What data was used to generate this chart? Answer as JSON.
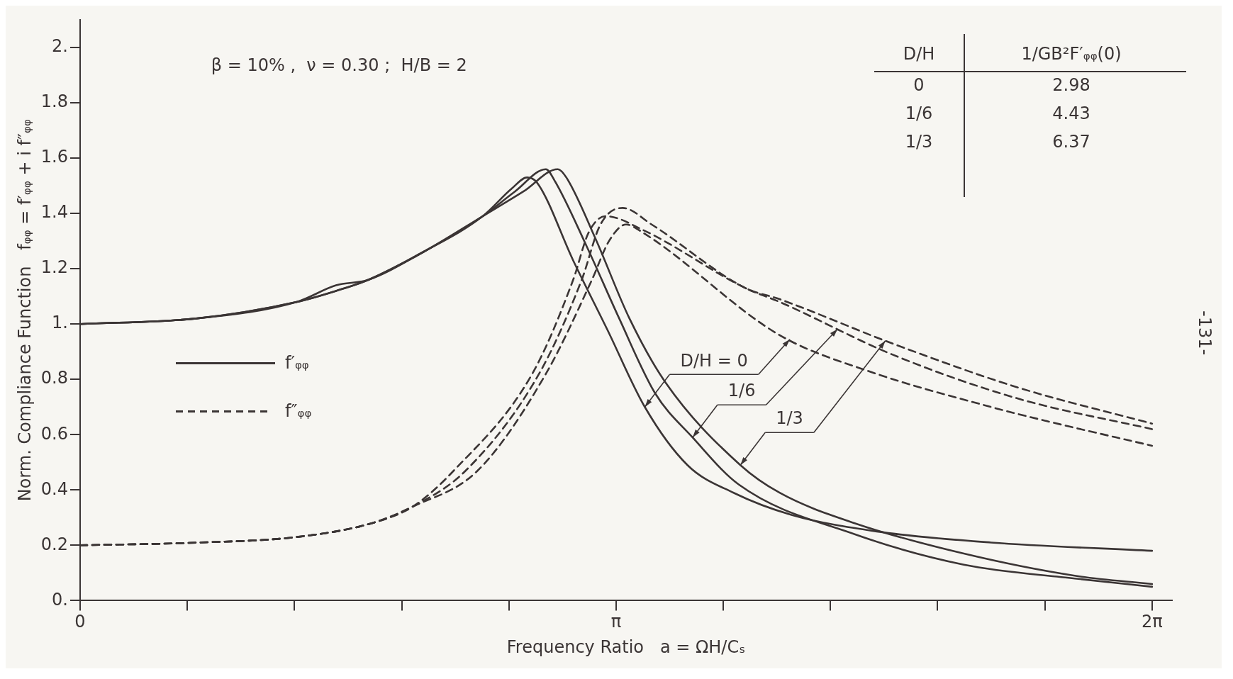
{
  "chart_data": {
    "type": "line",
    "xlabel": "Frequency Ratio   a = ΩH/Cₛ",
    "ylabel": "Norm. Compliance Function   fᵩᵩ = f′ᵩᵩ + i f″ᵩᵩ",
    "xlim": [
      0,
      6.4
    ],
    "ylim": [
      0,
      2.1
    ],
    "xticks": [
      {
        "value": 0,
        "label": "0"
      },
      {
        "value": 0.6283,
        "label": null
      },
      {
        "value": 1.2566,
        "label": null
      },
      {
        "value": 1.885,
        "label": null
      },
      {
        "value": 2.5133,
        "label": null
      },
      {
        "value": 3.1416,
        "label": "π"
      },
      {
        "value": 3.7699,
        "label": null
      },
      {
        "value": 4.3982,
        "label": null
      },
      {
        "value": 5.0265,
        "label": null
      },
      {
        "value": 5.6549,
        "label": null
      },
      {
        "value": 6.2832,
        "label": "2π"
      }
    ],
    "yticks": [
      {
        "value": 0,
        "label": "0."
      },
      0.2,
      0.4,
      0.6,
      0.8,
      {
        "value": 1,
        "label": "1."
      },
      1.2,
      1.4,
      1.6,
      1.8,
      {
        "value": 2,
        "label": "2."
      }
    ],
    "grid": false,
    "legend": "left",
    "series": [
      {
        "name": "f′ᵩᵩ",
        "color": "#3b3535",
        "x": [
          0,
          0.68,
          1.27,
          1.5,
          1.69,
          2.01,
          2.36,
          2.53,
          2.62,
          2.68,
          2.89,
          3.09,
          3.31,
          3.56,
          3.83,
          4.17,
          4.67,
          5.34,
          6.283
        ],
        "values": [
          1.0,
          1.02,
          1.08,
          1.12,
          1.16,
          1.26,
          1.39,
          1.49,
          1.53,
          1.51,
          1.23,
          0.98,
          0.7,
          0.49,
          0.39,
          0.31,
          0.25,
          0.21,
          0.18
        ]
      },
      {
        "color": "#3b3535",
        "x": [
          0,
          0.68,
          1.27,
          1.5,
          1.69,
          2.01,
          2.36,
          2.55,
          2.73,
          2.78,
          2.97,
          3.16,
          3.37,
          3.59,
          3.86,
          4.54,
          5.18,
          5.83,
          6.283
        ],
        "values": [
          1.0,
          1.02,
          1.08,
          1.12,
          1.16,
          1.26,
          1.39,
          1.48,
          1.56,
          1.52,
          1.28,
          1.02,
          0.75,
          0.59,
          0.42,
          0.24,
          0.13,
          0.08,
          0.05
        ]
      },
      {
        "color": "#3b3535",
        "x": [
          0,
          0.68,
          1.27,
          1.5,
          1.69,
          2.01,
          2.36,
          2.6,
          2.8,
          2.85,
          3.02,
          3.22,
          3.43,
          3.87,
          4.1,
          4.54,
          5.18,
          5.83,
          6.283
        ],
        "values": [
          1.0,
          1.02,
          1.08,
          1.14,
          1.16,
          1.26,
          1.39,
          1.48,
          1.56,
          1.53,
          1.31,
          1.02,
          0.79,
          0.49,
          0.39,
          0.28,
          0.17,
          0.09,
          0.06
        ]
      },
      {
        "name": "f″ᵩᵩ",
        "color": "#3b3535",
        "line_style": "dashed",
        "x": [
          0,
          0.7,
          1.27,
          1.71,
          1.95,
          2.33,
          2.73,
          3.0,
          3.1,
          3.2,
          3.3,
          4.1,
          4.62,
          5.34,
          5.66,
          6.283
        ],
        "values": [
          0.2,
          0.21,
          0.23,
          0.28,
          0.34,
          0.47,
          0.82,
          1.16,
          1.3,
          1.36,
          1.33,
          0.96,
          0.83,
          0.7,
          0.65,
          0.56
        ]
      },
      {
        "color": "#3b3535",
        "line_style": "dashed",
        "x": [
          0,
          0.7,
          1.27,
          1.71,
          1.95,
          2.19,
          2.65,
          2.89,
          2.98,
          3.08,
          3.3,
          3.9,
          4.1,
          4.76,
          5.5,
          6.283
        ],
        "values": [
          0.2,
          0.21,
          0.23,
          0.28,
          0.34,
          0.47,
          0.82,
          1.16,
          1.33,
          1.39,
          1.34,
          1.13,
          1.08,
          0.89,
          0.73,
          0.62
        ]
      },
      {
        "color": "#3b3535",
        "line_style": "dashed",
        "x": [
          0,
          0.7,
          1.27,
          1.71,
          1.95,
          2.26,
          2.69,
          2.94,
          3.05,
          3.18,
          3.35,
          3.9,
          4.1,
          4.76,
          5.5,
          6.283
        ],
        "values": [
          0.2,
          0.21,
          0.23,
          0.28,
          0.34,
          0.47,
          0.82,
          1.16,
          1.36,
          1.42,
          1.36,
          1.13,
          1.09,
          0.93,
          0.77,
          0.64
        ]
      }
    ],
    "annotations": [
      "β = 10% ,  ν = 0.30 ;  H/B = 2",
      "D/H",
      "1/GB²F′ᵩᵩ(0)",
      "0",
      "2.98",
      "1/6",
      "4.43",
      "1/3",
      "6.37",
      "-131-",
      {
        "text": "D/H = 0",
        "x": 3.31,
        "y": 0.7
      },
      {
        "text": "1/6",
        "x": 3.59,
        "y": 0.59
      },
      {
        "text": "1/3",
        "x": 3.87,
        "y": 0.49
      }
    ]
  }
}
